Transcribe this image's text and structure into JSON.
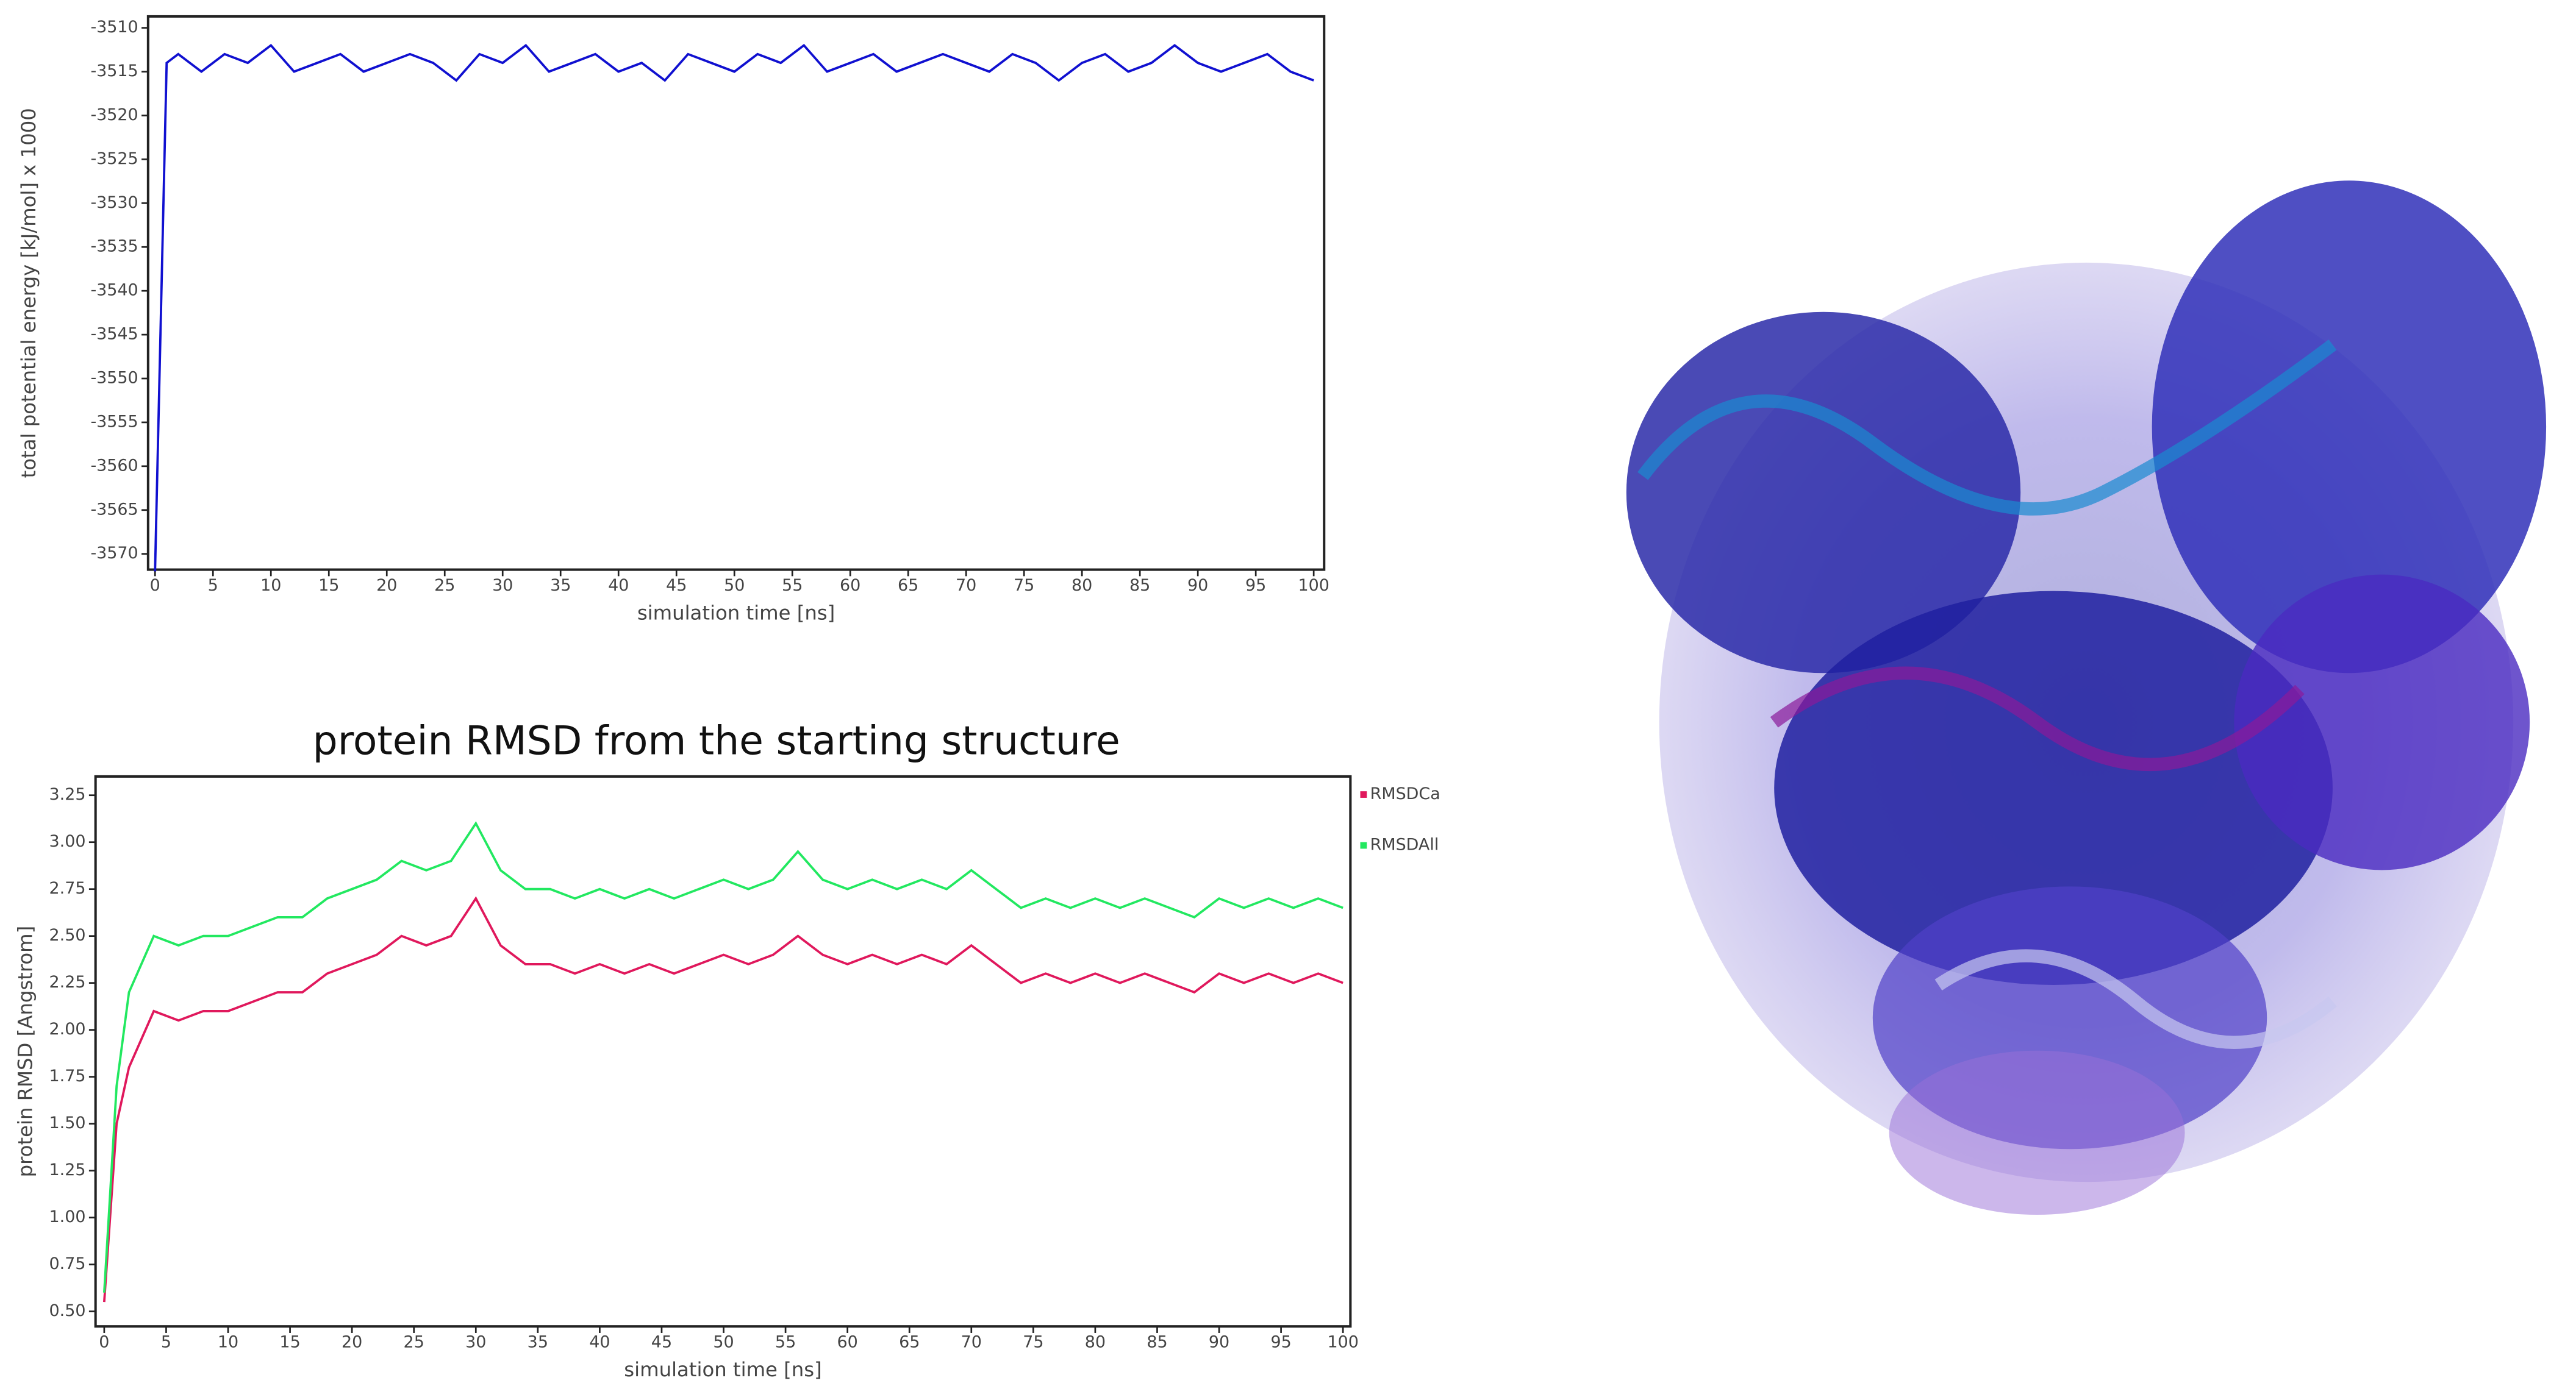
{
  "chart_data": [
    {
      "type": "line",
      "xlabel": "simulation time [ns]",
      "ylabel": "total potential energy [kJ/mol] x 1000",
      "x": [
        0,
        1,
        2,
        4,
        6,
        8,
        10,
        12,
        14,
        16,
        18,
        20,
        22,
        24,
        26,
        28,
        30,
        32,
        34,
        36,
        38,
        40,
        42,
        44,
        46,
        48,
        50,
        52,
        54,
        56,
        58,
        60,
        62,
        64,
        66,
        68,
        70,
        72,
        74,
        76,
        78,
        80,
        82,
        84,
        86,
        88,
        90,
        92,
        94,
        96,
        98,
        100
      ],
      "series": [
        {
          "name": "energy",
          "color": "#1010d0",
          "values": [
            -3572,
            -3514,
            -3513,
            -3515,
            -3513,
            -3514,
            -3512,
            -3515,
            -3514,
            -3513,
            -3515,
            -3514,
            -3513,
            -3514,
            -3516,
            -3513,
            -3514,
            -3512,
            -3515,
            -3514,
            -3513,
            -3515,
            -3514,
            -3516,
            -3513,
            -3514,
            -3515,
            -3513,
            -3514,
            -3512,
            -3515,
            -3514,
            -3513,
            -3515,
            -3514,
            -3513,
            -3514,
            -3515,
            -3513,
            -3514,
            -3516,
            -3514,
            -3513,
            -3515,
            -3514,
            -3512,
            -3514,
            -3515,
            -3514,
            -3513,
            -3515,
            -3516
          ]
        }
      ],
      "xlim": [
        -0.6,
        100.9
      ],
      "xticks": [
        0,
        5,
        10,
        15,
        20,
        25,
        30,
        35,
        40,
        45,
        50,
        55,
        60,
        65,
        70,
        75,
        80,
        85,
        90,
        95,
        100
      ],
      "ylim": [
        -3571.8,
        -3508.7
      ],
      "yticks": [
        -3510,
        -3515,
        -3520,
        -3525,
        -3530,
        -3535,
        -3540,
        -3545,
        -3550,
        -3555,
        -3560,
        -3565,
        -3570
      ]
    },
    {
      "type": "line",
      "title": "protein RMSD from the starting structure",
      "xlabel": "simulation time [ns]",
      "ylabel": "protein RMSD [Angstrom]",
      "legend": "right",
      "x": [
        0,
        1,
        2,
        4,
        6,
        8,
        10,
        12,
        14,
        16,
        18,
        20,
        22,
        24,
        26,
        28,
        30,
        32,
        34,
        36,
        38,
        40,
        42,
        44,
        46,
        48,
        50,
        52,
        54,
        56,
        58,
        60,
        62,
        64,
        66,
        68,
        70,
        72,
        74,
        76,
        78,
        80,
        82,
        84,
        86,
        88,
        90,
        92,
        94,
        96,
        98,
        100
      ],
      "series": [
        {
          "name": "RMSDCa",
          "color": "#e0185c",
          "values": [
            0.55,
            1.5,
            1.8,
            2.1,
            2.05,
            2.1,
            2.1,
            2.15,
            2.2,
            2.2,
            2.3,
            2.35,
            2.4,
            2.5,
            2.45,
            2.5,
            2.7,
            2.45,
            2.35,
            2.35,
            2.3,
            2.35,
            2.3,
            2.35,
            2.3,
            2.35,
            2.4,
            2.35,
            2.4,
            2.5,
            2.4,
            2.35,
            2.4,
            2.35,
            2.4,
            2.35,
            2.45,
            2.35,
            2.25,
            2.3,
            2.25,
            2.3,
            2.25,
            2.3,
            2.25,
            2.2,
            2.3,
            2.25,
            2.3,
            2.25,
            2.3,
            2.25
          ]
        },
        {
          "name": "RMSDAll",
          "color": "#22e860",
          "values": [
            0.6,
            1.7,
            2.2,
            2.5,
            2.45,
            2.5,
            2.5,
            2.55,
            2.6,
            2.6,
            2.7,
            2.75,
            2.8,
            2.9,
            2.85,
            2.9,
            3.1,
            2.85,
            2.75,
            2.75,
            2.7,
            2.75,
            2.7,
            2.75,
            2.7,
            2.75,
            2.8,
            2.75,
            2.8,
            2.95,
            2.8,
            2.75,
            2.8,
            2.75,
            2.8,
            2.75,
            2.85,
            2.75,
            2.65,
            2.7,
            2.65,
            2.7,
            2.65,
            2.7,
            2.65,
            2.6,
            2.7,
            2.65,
            2.7,
            2.65,
            2.7,
            2.65
          ]
        }
      ],
      "xlim": [
        -0.7,
        100.6
      ],
      "xticks": [
        0,
        5,
        10,
        15,
        20,
        25,
        30,
        35,
        40,
        45,
        50,
        55,
        60,
        65,
        70,
        75,
        80,
        85,
        90,
        95,
        100
      ],
      "ylim": [
        0.42,
        3.35
      ],
      "yticks": [
        {
          "value": 0.5,
          "label": "0.50"
        },
        {
          "value": 0.75,
          "label": "0.75"
        },
        {
          "value": 1,
          "label": "1.00"
        },
        {
          "value": 1.25,
          "label": "1.25"
        },
        {
          "value": 1.5,
          "label": "1.50"
        },
        {
          "value": 1.75,
          "label": "1.75"
        },
        {
          "value": 2,
          "label": "2.00"
        },
        {
          "value": 2.25,
          "label": "2.25"
        },
        {
          "value": 2.5,
          "label": "2.50"
        },
        {
          "value": 2.75,
          "label": "2.75"
        },
        {
          "value": 3,
          "label": "3.00"
        },
        {
          "value": 3.25,
          "label": "3.25"
        }
      ]
    }
  ]
}
